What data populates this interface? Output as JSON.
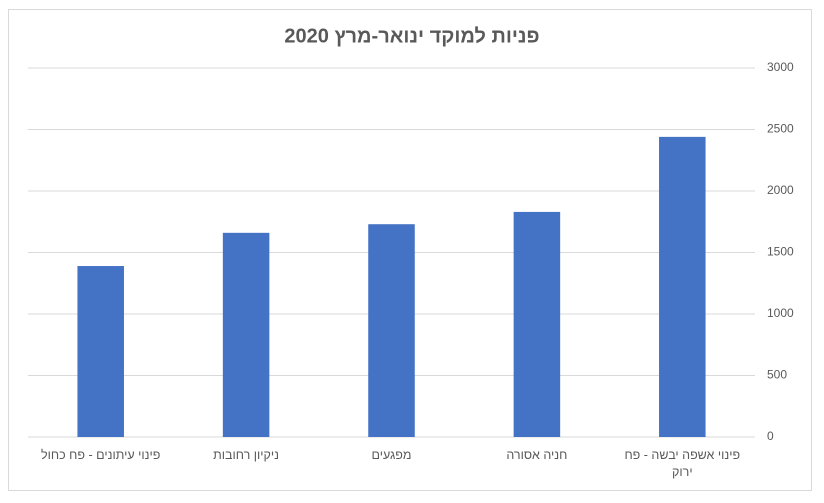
{
  "chart_data": {
    "type": "bar",
    "title": "פניות למוקד ינואר-מרץ 2020",
    "direction": "rtl",
    "categories": [
      "פינוי אשפה יבשה - פח ירוק",
      "חניה אסורה",
      "מפגעים",
      "ניקיון רחובות",
      "פינוי עיתונים - פח כחול"
    ],
    "values": [
      2440,
      1830,
      1730,
      1660,
      1390
    ],
    "color": "#4472c4",
    "ylim": [
      0,
      3000
    ],
    "yticks": [
      0,
      500,
      1000,
      1500,
      2000,
      2500,
      3000
    ],
    "grid": true
  }
}
